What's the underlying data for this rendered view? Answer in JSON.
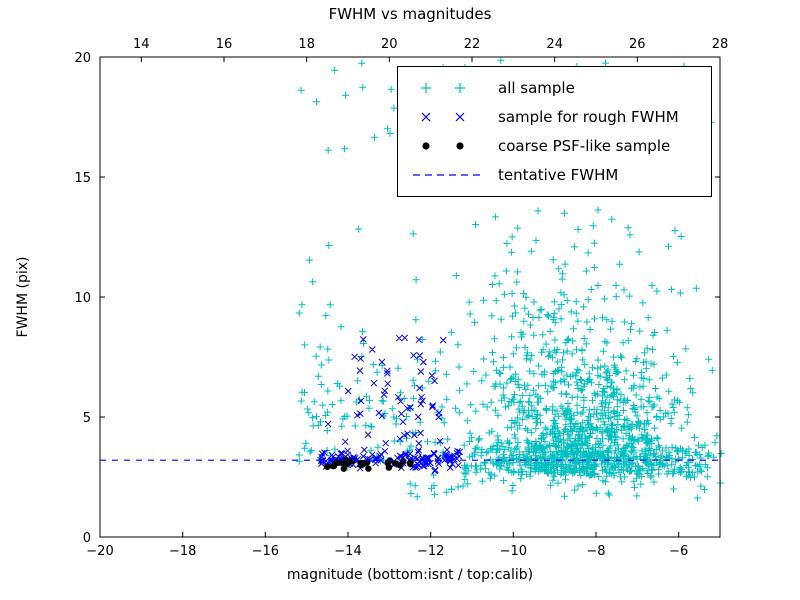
{
  "chart_data": {
    "type": "scatter",
    "title": "FWHM vs magnitudes",
    "xlabel": "magnitude (bottom:isnt / top:calib)",
    "ylabel": "FWHM (pix)",
    "xlim": [
      -20,
      -5
    ],
    "ylim": [
      0,
      20
    ],
    "grid": false,
    "legend_position": "upper right inside",
    "x_ticks": {
      "values": [
        -20,
        -18,
        -16,
        -14,
        -12,
        -10,
        -8,
        -6
      ],
      "labels": [
        "−20",
        "−18",
        "−16",
        "−14",
        "−12",
        "−10",
        "−8",
        "−6"
      ]
    },
    "top_ticks": {
      "lim": [
        13,
        28
      ],
      "values": [
        14,
        16,
        18,
        20,
        22,
        24,
        26,
        28
      ],
      "labels": [
        "14",
        "16",
        "18",
        "20",
        "22",
        "24",
        "26",
        "28"
      ]
    },
    "y_ticks": {
      "values": [
        0,
        5,
        10,
        15,
        20
      ],
      "labels": [
        "0",
        "5",
        "10",
        "15",
        "20"
      ]
    },
    "seed": 7,
    "series": [
      {
        "name": "all sample",
        "marker": "plus",
        "color": "#00bfbf",
        "clusters": [
          {
            "count": 850,
            "x": {
              "dist": "gauss",
              "mean": -8.3,
              "sd": 1.25,
              "min": -11.2,
              "max": -5.0
            },
            "y": {
              "dist": "halfgauss",
              "base": 2.6,
              "scale": 2.0,
              "max": 16
            }
          },
          {
            "count": 280,
            "x": {
              "dist": "gauss",
              "mean": -8.6,
              "sd": 1.5,
              "min": -11.2,
              "max": -5.0
            },
            "y": {
              "dist": "halfgauss",
              "base": 5.0,
              "scale": 4.0,
              "max": 19.5
            }
          },
          {
            "count": 70,
            "x": {
              "dist": "uniform",
              "min": -15.2,
              "max": -5.2
            },
            "y": {
              "dist": "uniform",
              "min": 16,
              "max": 20
            }
          },
          {
            "count": 140,
            "x": {
              "dist": "uniform",
              "min": -15.2,
              "max": -11.2
            },
            "y": {
              "dist": "halfgauss",
              "base": 2.9,
              "scale": 3.8,
              "max": 20
            }
          },
          {
            "count": 260,
            "x": {
              "dist": "uniform",
              "min": -11.2,
              "max": -4.95
            },
            "y": {
              "dist": "gauss",
              "mean": 3.1,
              "sd": 0.35,
              "min": 2.1,
              "max": 4.6
            }
          },
          {
            "count": 40,
            "x": {
              "dist": "uniform",
              "min": -12.5,
              "max": -5.0
            },
            "y": {
              "dist": "uniform",
              "min": 1.6,
              "max": 2.6
            }
          }
        ]
      },
      {
        "name": "sample for rough FWHM",
        "marker": "x",
        "color": "#0000ff",
        "clusters": [
          {
            "count": 130,
            "x": {
              "dist": "uniform",
              "min": -14.65,
              "max": -11.25
            },
            "y": {
              "dist": "gauss",
              "mean": 3.25,
              "sd": 0.2,
              "min": 2.7,
              "max": 4.1
            }
          },
          {
            "count": 55,
            "x": {
              "dist": "gauss",
              "mean": -12.8,
              "sd": 0.8,
              "min": -14.6,
              "max": -11.6
            },
            "y": {
              "dist": "halfgauss",
              "base": 3.8,
              "scale": 2.6,
              "max": 12
            }
          }
        ]
      },
      {
        "name": "coarse PSF-like sample",
        "marker": "dot",
        "color": "#000000",
        "clusters": [
          {
            "count": 26,
            "x": {
              "dist": "uniform",
              "min": -14.5,
              "max": -12.35
            },
            "y": {
              "dist": "gauss",
              "mean": 3.03,
              "sd": 0.09,
              "min": 2.8,
              "max": 3.3
            }
          }
        ]
      }
    ],
    "line_series": {
      "name": "tentative FWHM",
      "style": "dashed",
      "color": "#0000ff",
      "y": 3.2
    }
  },
  "legend": {
    "items": [
      {
        "label": "all sample",
        "marker": "plus",
        "color": "#00bfbf"
      },
      {
        "label": "sample for rough FWHM",
        "marker": "x",
        "color": "#0000ff"
      },
      {
        "label": "coarse PSF-like sample",
        "marker": "dot",
        "color": "#000000"
      },
      {
        "label": "tentative FWHM",
        "marker": "dashed-line",
        "color": "#0000ff"
      }
    ]
  }
}
